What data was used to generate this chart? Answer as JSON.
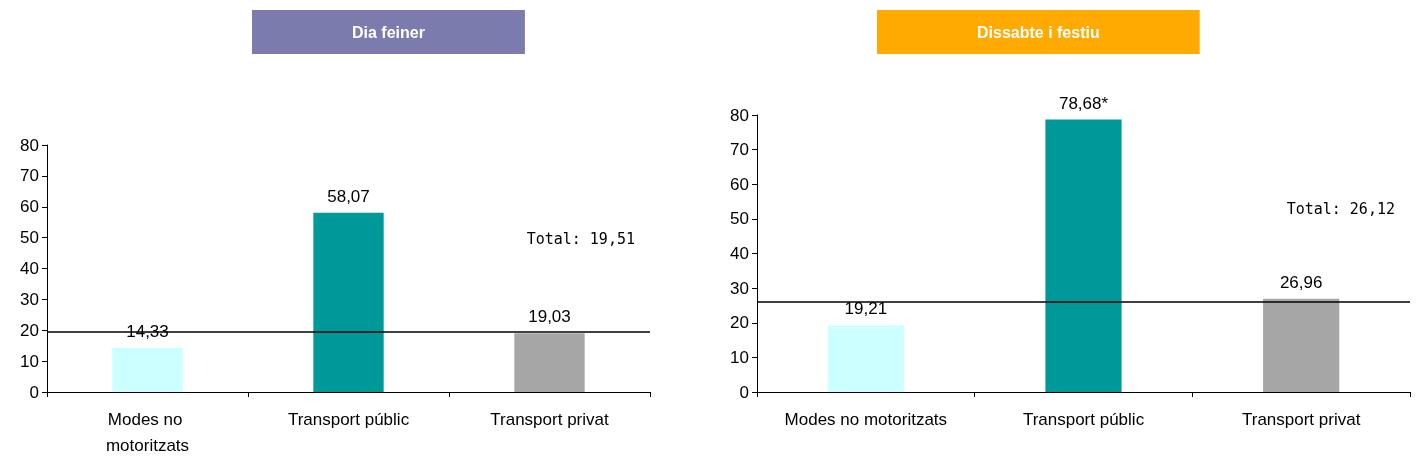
{
  "chart_data": [
    {
      "type": "bar",
      "title": "Dia feiner",
      "categories": [
        "Modes no motoritzats",
        "Transport públic",
        "Transport privat"
      ],
      "values": [
        14.33,
        58.07,
        19.03
      ],
      "colors": [
        "#ccffff",
        "#009999",
        "#a6a6a6"
      ],
      "value_labels": [
        "14,33",
        "58,07",
        "19,03"
      ],
      "ylim": [
        0,
        80
      ],
      "yticks": [
        0,
        10,
        20,
        30,
        40,
        50,
        60,
        70,
        80
      ],
      "ref_lines": [
        {
          "axis": "y",
          "value": 19.51,
          "label": "Total: 19,51",
          "color": "#000000"
        }
      ]
    },
    {
      "type": "bar",
      "title": "Dissabte i festiu",
      "categories": [
        "Modes no motoritzats",
        "Transport públic",
        "Transport privat"
      ],
      "values": [
        19.21,
        78.68,
        26.96
      ],
      "colors": [
        "#ccffff",
        "#009999",
        "#a6a6a6"
      ],
      "value_labels": [
        "19,21",
        "78,68*",
        "26,96"
      ],
      "ylim": [
        0,
        80
      ],
      "yticks": [
        0,
        10,
        20,
        30,
        40,
        50,
        60,
        70,
        80
      ],
      "ref_lines": [
        {
          "axis": "y",
          "value": 26.12,
          "label": "Total: 26,12",
          "color": "#000000"
        }
      ]
    }
  ]
}
